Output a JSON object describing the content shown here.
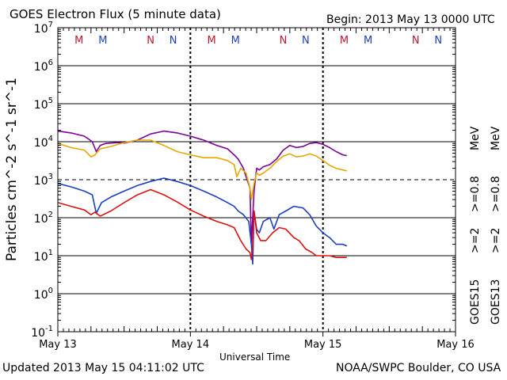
{
  "header": {
    "title": "GOES Electron Flux (5 minute data)",
    "begin": "Begin: 2013 May 13 0000 UTC"
  },
  "footer": {
    "updated": "Updated 2013 May 15 04:11:02 UTC",
    "credit": "NOAA/SWPC Boulder, CO USA"
  },
  "colors": {
    "purple": "#7b0099",
    "gold": "#e6a800",
    "blue": "#1a3fbf",
    "red": "#dd1111",
    "marker_m": "#c0182a",
    "marker_n": "#1a3fbf"
  },
  "chart_data": {
    "type": "line",
    "title": "GOES Electron Flux (5 minute data)",
    "xlabel": "Universal Time",
    "ylabel": "Particles cm^-2 s^-1 sr^-1",
    "x_unit": "days since 2013 May 13 0000 UTC",
    "xlim": [
      0,
      3
    ],
    "ylim": [
      0.1,
      10000000
    ],
    "y_scale": "log",
    "x_ticks": [
      {
        "value": 0,
        "label": "May 13"
      },
      {
        "value": 1,
        "label": "May 14"
      },
      {
        "value": 2,
        "label": "May 15"
      },
      {
        "value": 3,
        "label": "May 16"
      }
    ],
    "y_ticks": [
      {
        "value": 10000000,
        "base": "10",
        "exp": "7"
      },
      {
        "value": 1000000,
        "base": "10",
        "exp": "6"
      },
      {
        "value": 100000,
        "base": "10",
        "exp": "5"
      },
      {
        "value": 10000,
        "base": "10",
        "exp": "4"
      },
      {
        "value": 1000,
        "base": "10",
        "exp": "3"
      },
      {
        "value": 100,
        "base": "10",
        "exp": "2"
      },
      {
        "value": 10,
        "base": "10",
        "exp": "1"
      },
      {
        "value": 1,
        "base": "10",
        "exp": "0"
      },
      {
        "value": 0.1,
        "base": "10",
        "exp": "-1"
      }
    ],
    "threshold_line": 1000,
    "markers": [
      {
        "x": 0.16,
        "label": "M",
        "color": "#c0182a"
      },
      {
        "x": 0.34,
        "label": "M",
        "color": "#1a3fbf"
      },
      {
        "x": 0.7,
        "label": "N",
        "color": "#c0182a"
      },
      {
        "x": 0.87,
        "label": "N",
        "color": "#1a3fbf"
      },
      {
        "x": 1.16,
        "label": "M",
        "color": "#c0182a"
      },
      {
        "x": 1.34,
        "label": "M",
        "color": "#1a3fbf"
      },
      {
        "x": 1.7,
        "label": "N",
        "color": "#c0182a"
      },
      {
        "x": 1.87,
        "label": "N",
        "color": "#1a3fbf"
      },
      {
        "x": 2.16,
        "label": "M",
        "color": "#c0182a"
      },
      {
        "x": 2.34,
        "label": "M",
        "color": "#1a3fbf"
      },
      {
        "x": 2.7,
        "label": "N",
        "color": "#c0182a"
      },
      {
        "x": 2.87,
        "label": "N",
        "color": "#1a3fbf"
      }
    ],
    "legend": {
      "placement": "right",
      "groups": [
        {
          "label": "GOES15",
          "entries": [
            {
              "label": ">=2",
              "color": "#1a3fbf"
            },
            {
              "label": ">=0.8",
              "color": "#7b0099"
            }
          ]
        },
        {
          "label": "GOES13",
          "entries": [
            {
              "label": ">=2",
              "color": "#dd1111"
            },
            {
              "label": ">=0.8",
              "color": "#e6a800"
            }
          ]
        }
      ],
      "unit": "MeV"
    },
    "series": [
      {
        "name": "GOES15 >=0.8 MeV",
        "color": "#7b0099",
        "x": [
          0,
          0.1,
          0.2,
          0.26,
          0.29,
          0.32,
          0.36,
          0.45,
          0.5,
          0.6,
          0.7,
          0.8,
          0.9,
          1.0,
          1.1,
          1.2,
          1.28,
          1.33,
          1.36,
          1.4,
          1.42,
          1.45,
          1.46,
          1.48,
          1.5,
          1.52,
          1.55,
          1.6,
          1.65,
          1.7,
          1.75,
          1.8,
          1.85,
          1.9,
          1.95,
          2.0,
          2.05,
          2.1,
          2.15,
          2.18
        ],
        "y": [
          19000,
          17000,
          14000,
          10000,
          5500,
          8000,
          9000,
          9500,
          9200,
          11000,
          16000,
          19000,
          17000,
          14000,
          11000,
          8000,
          6500,
          4500,
          3500,
          2000,
          1200,
          600,
          20,
          500,
          2000,
          1800,
          2200,
          2500,
          3500,
          6000,
          8000,
          7000,
          7500,
          9000,
          9500,
          8500,
          7000,
          5500,
          4500,
          4300
        ]
      },
      {
        "name": "GOES13 >=0.8 MeV",
        "color": "#e6a800",
        "x": [
          0,
          0.1,
          0.2,
          0.25,
          0.28,
          0.32,
          0.4,
          0.5,
          0.6,
          0.7,
          0.8,
          0.9,
          1.0,
          1.1,
          1.2,
          1.28,
          1.33,
          1.35,
          1.38,
          1.42,
          1.45,
          1.46,
          1.48,
          1.5,
          1.52,
          1.55,
          1.6,
          1.65,
          1.7,
          1.75,
          1.8,
          1.85,
          1.9,
          1.95,
          2.0,
          2.05,
          2.1,
          2.15,
          2.18
        ],
        "y": [
          9000,
          7000,
          6000,
          4000,
          4500,
          6500,
          7500,
          9500,
          11000,
          11000,
          8000,
          5500,
          4500,
          3800,
          3800,
          3200,
          2500,
          1200,
          2000,
          1500,
          600,
          300,
          800,
          1500,
          1300,
          1500,
          2000,
          3000,
          4200,
          4800,
          4000,
          4200,
          4800,
          4200,
          3200,
          2400,
          2000,
          1800,
          1700
        ]
      },
      {
        "name": "GOES15 >=2 MeV",
        "color": "#1a3fbf",
        "x": [
          0,
          0.1,
          0.2,
          0.26,
          0.29,
          0.33,
          0.4,
          0.5,
          0.6,
          0.7,
          0.8,
          0.9,
          1.0,
          1.1,
          1.2,
          1.28,
          1.33,
          1.36,
          1.4,
          1.44,
          1.46,
          1.47,
          1.48,
          1.5,
          1.52,
          1.55,
          1.6,
          1.63,
          1.67,
          1.72,
          1.78,
          1.85,
          1.9,
          1.95,
          2.0,
          2.05,
          2.1,
          2.15,
          2.18
        ],
        "y": [
          800,
          650,
          500,
          400,
          130,
          250,
          350,
          500,
          700,
          900,
          1100,
          900,
          700,
          500,
          350,
          250,
          200,
          150,
          120,
          80,
          20,
          6,
          150,
          50,
          40,
          80,
          100,
          50,
          120,
          150,
          200,
          180,
          120,
          60,
          40,
          30,
          20,
          20,
          18
        ]
      },
      {
        "name": "GOES13 >=2 MeV",
        "color": "#dd1111",
        "x": [
          0,
          0.1,
          0.2,
          0.25,
          0.28,
          0.32,
          0.4,
          0.5,
          0.6,
          0.7,
          0.8,
          0.9,
          1.0,
          1.1,
          1.2,
          1.28,
          1.33,
          1.35,
          1.38,
          1.42,
          1.45,
          1.46,
          1.47,
          1.48,
          1.5,
          1.53,
          1.57,
          1.62,
          1.67,
          1.72,
          1.78,
          1.82,
          1.87,
          1.92,
          1.95,
          2.0,
          2.05,
          2.1,
          2.15,
          2.18
        ],
        "y": [
          250,
          200,
          160,
          120,
          140,
          110,
          150,
          250,
          400,
          550,
          400,
          260,
          160,
          110,
          80,
          65,
          55,
          40,
          25,
          15,
          12,
          8,
          20,
          150,
          40,
          25,
          25,
          40,
          55,
          50,
          30,
          25,
          15,
          12,
          10,
          10,
          10,
          9,
          9,
          9
        ]
      }
    ]
  }
}
